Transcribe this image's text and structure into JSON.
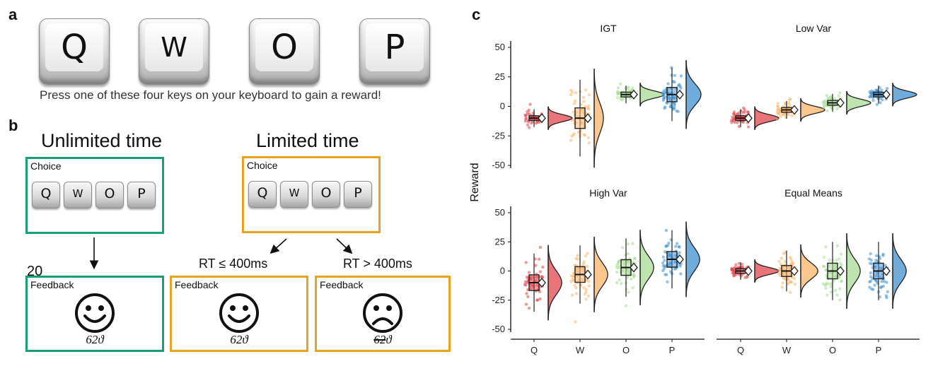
{
  "panel_a": {
    "letter": "a",
    "keys": [
      "Q",
      "W",
      "O",
      "P"
    ],
    "prompt": "Press one of these four keys on your keyboard to gain a reward!"
  },
  "panel_b": {
    "letter": "b",
    "unlimited_title": "Unlimited time",
    "limited_title": "Limited time",
    "choice_label": "Choice",
    "feedback_label": "Feedback",
    "keys": [
      "Q",
      "W",
      "O",
      "P"
    ],
    "rt_fast": "RT ≤ 400ms",
    "rt_slow": "RT > 400ms",
    "points": "62",
    "stray_number": "20"
  },
  "panel_c": {
    "letter": "c",
    "chart_data": {
      "type": "raincloud",
      "ylabel": "Reward",
      "categories": [
        "Q",
        "W",
        "O",
        "P"
      ],
      "ylim": [
        -50,
        50
      ],
      "yticks": [
        -50,
        -25,
        0,
        25,
        50
      ],
      "colors": {
        "Q": "#e0474c",
        "W": "#fbb46a",
        "O": "#a8dc94",
        "P": "#3f8fcf"
      },
      "facets": [
        {
          "title": "IGT",
          "stats": {
            "Q": {
              "mean": -10,
              "sd": 3
            },
            "W": {
              "mean": -10,
              "sd": 13
            },
            "O": {
              "mean": 10,
              "sd": 3
            },
            "P": {
              "mean": 10,
              "sd": 9
            }
          }
        },
        {
          "title": "Low Var",
          "stats": {
            "Q": {
              "mean": -10,
              "sd": 3
            },
            "W": {
              "mean": -3,
              "sd": 3
            },
            "O": {
              "mean": 3,
              "sd": 3
            },
            "P": {
              "mean": 10,
              "sd": 3
            }
          }
        },
        {
          "title": "High Var",
          "stats": {
            "Q": {
              "mean": -10,
              "sd": 10
            },
            "W": {
              "mean": -3,
              "sd": 10
            },
            "O": {
              "mean": 3,
              "sd": 10
            },
            "P": {
              "mean": 10,
              "sd": 10
            }
          }
        },
        {
          "title": "Equal Means",
          "stats": {
            "Q": {
              "mean": 0,
              "sd": 3
            },
            "W": {
              "mean": 0,
              "sd": 7
            },
            "O": {
              "mean": 0,
              "sd": 10
            },
            "P": {
              "mean": 0,
              "sd": 10
            }
          }
        }
      ]
    }
  }
}
